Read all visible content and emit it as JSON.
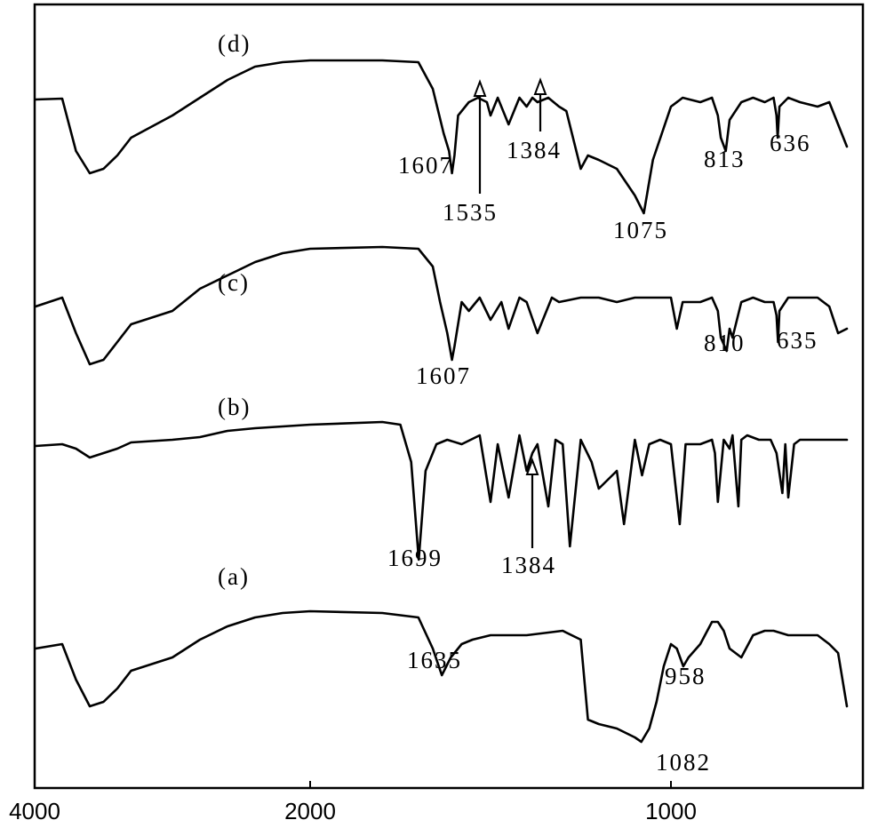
{
  "chart_data": {
    "type": "line",
    "title": "",
    "xlabel": "",
    "ylabel": "",
    "x_reversed": true,
    "xlim": [
      4000,
      400
    ],
    "xticks": [
      "4000",
      "2000",
      "1000"
    ],
    "y_axis_shown": false,
    "series": [
      {
        "name": "(d)",
        "x": [
          4000,
          3800,
          3700,
          3600,
          3500,
          3400,
          3300,
          3000,
          2800,
          2600,
          2400,
          2200,
          2000,
          1800,
          1700,
          1660,
          1630,
          1615,
          1607,
          1600,
          1590,
          1560,
          1535,
          1510,
          1500,
          1480,
          1450,
          1420,
          1400,
          1384,
          1370,
          1340,
          1310,
          1290,
          1250,
          1230,
          1200,
          1150,
          1100,
          1075,
          1050,
          1000,
          960,
          900,
          860,
          840,
          830,
          813,
          800,
          760,
          720,
          680,
          650,
          640,
          636,
          630,
          600,
          560,
          500,
          460,
          430,
          400
        ],
        "y": [
          12,
          11,
          70,
          95,
          90,
          75,
          55,
          30,
          10,
          -10,
          -25,
          -30,
          -32,
          -32,
          -30,
          0,
          50,
          70,
          95,
          75,
          30,
          15,
          10,
          15,
          30,
          10,
          40,
          10,
          20,
          10,
          15,
          10,
          20,
          25,
          90,
          75,
          80,
          90,
          120,
          140,
          80,
          20,
          10,
          15,
          10,
          30,
          55,
          70,
          35,
          15,
          10,
          15,
          10,
          30,
          55,
          20,
          10,
          15,
          20,
          15,
          40,
          65
        ]
      },
      {
        "name": "(c)",
        "x": [
          4000,
          3800,
          3700,
          3600,
          3500,
          3400,
          3300,
          3000,
          2800,
          2600,
          2400,
          2200,
          2000,
          1800,
          1700,
          1660,
          1640,
          1620,
          1607,
          1600,
          1580,
          1560,
          1530,
          1500,
          1470,
          1450,
          1420,
          1400,
          1370,
          1330,
          1310,
          1250,
          1200,
          1150,
          1100,
          1050,
          1000,
          980,
          960,
          900,
          860,
          840,
          830,
          810,
          800,
          790,
          760,
          720,
          680,
          650,
          640,
          635,
          630,
          600,
          560,
          500,
          460,
          430,
          400
        ],
        "y": [
          15,
          5,
          45,
          80,
          75,
          55,
          35,
          20,
          -5,
          -20,
          -35,
          -45,
          -50,
          -52,
          -50,
          -30,
          10,
          45,
          75,
          60,
          10,
          20,
          5,
          30,
          10,
          40,
          5,
          10,
          45,
          5,
          10,
          5,
          5,
          10,
          5,
          5,
          5,
          40,
          10,
          10,
          5,
          20,
          50,
          65,
          40,
          50,
          10,
          5,
          10,
          10,
          25,
          55,
          20,
          5,
          5,
          5,
          15,
          45,
          40
        ]
      },
      {
        "name": "(b)",
        "x": [
          4000,
          3800,
          3700,
          3600,
          3500,
          3400,
          3300,
          3000,
          2800,
          2600,
          2400,
          2200,
          2000,
          1800,
          1750,
          1720,
          1699,
          1680,
          1650,
          1620,
          1580,
          1530,
          1500,
          1480,
          1450,
          1420,
          1400,
          1384,
          1370,
          1340,
          1320,
          1300,
          1280,
          1250,
          1220,
          1200,
          1150,
          1130,
          1100,
          1080,
          1060,
          1030,
          1000,
          970,
          950,
          900,
          860,
          850,
          840,
          820,
          800,
          790,
          770,
          760,
          740,
          700,
          660,
          640,
          620,
          610,
          600,
          580,
          560,
          500,
          450,
          400
        ],
        "y": [
          12,
          10,
          15,
          25,
          20,
          15,
          8,
          5,
          2,
          -5,
          -8,
          -10,
          -12,
          -15,
          -12,
          30,
          140,
          40,
          10,
          5,
          10,
          0,
          75,
          10,
          70,
          0,
          40,
          20,
          10,
          80,
          5,
          10,
          125,
          5,
          30,
          60,
          40,
          100,
          5,
          45,
          10,
          5,
          10,
          100,
          10,
          10,
          5,
          20,
          75,
          5,
          15,
          0,
          80,
          5,
          0,
          5,
          5,
          20,
          65,
          10,
          70,
          10,
          5,
          5,
          5,
          5
        ]
      },
      {
        "name": "(a)",
        "x": [
          4000,
          3800,
          3700,
          3600,
          3500,
          3400,
          3300,
          3000,
          2800,
          2600,
          2400,
          2200,
          2000,
          1800,
          1700,
          1660,
          1635,
          1610,
          1580,
          1550,
          1500,
          1400,
          1300,
          1250,
          1230,
          1200,
          1150,
          1100,
          1082,
          1060,
          1040,
          1020,
          1000,
          980,
          958,
          940,
          900,
          860,
          840,
          820,
          800,
          760,
          720,
          680,
          650,
          600,
          560,
          500,
          460,
          430,
          400
        ],
        "y": [
          10,
          5,
          45,
          75,
          70,
          55,
          35,
          20,
          0,
          -15,
          -25,
          -30,
          -32,
          -30,
          -25,
          10,
          40,
          20,
          5,
          0,
          -5,
          -5,
          -10,
          0,
          90,
          95,
          100,
          110,
          115,
          100,
          70,
          30,
          5,
          10,
          30,
          20,
          5,
          -20,
          -20,
          -10,
          10,
          20,
          -5,
          -10,
          -10,
          -5,
          -5,
          -5,
          5,
          15,
          75
        ]
      }
    ],
    "curve_labels": [
      "(d)",
      "(c)",
      "(b)",
      "(a)"
    ],
    "annotations": [
      {
        "series": "(d)",
        "text": "1607",
        "x": 1607
      },
      {
        "series": "(d)",
        "text": "1535",
        "x": 1535,
        "arrow": true
      },
      {
        "series": "(d)",
        "text": "1384",
        "x": 1384,
        "arrow": true
      },
      {
        "series": "(d)",
        "text": "1075",
        "x": 1075
      },
      {
        "series": "(d)",
        "text": "813",
        "x": 813
      },
      {
        "series": "(d)",
        "text": "636",
        "x": 636
      },
      {
        "series": "(c)",
        "text": "1607",
        "x": 1607
      },
      {
        "series": "(c)",
        "text": "810",
        "x": 810
      },
      {
        "series": "(c)",
        "text": "635",
        "x": 635
      },
      {
        "series": "(b)",
        "text": "1699",
        "x": 1699
      },
      {
        "series": "(b)",
        "text": "1384",
        "x": 1384,
        "arrow": true
      },
      {
        "series": "(a)",
        "text": "1635",
        "x": 1635
      },
      {
        "series": "(a)",
        "text": "958",
        "x": 958
      },
      {
        "series": "(a)",
        "text": "1082",
        "x": 1082
      }
    ],
    "grid": false,
    "legend": "none"
  }
}
